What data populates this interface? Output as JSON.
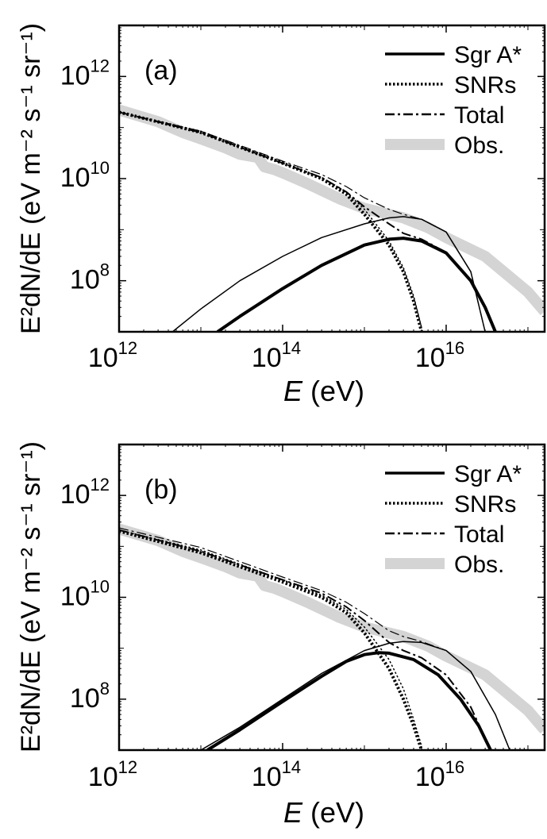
{
  "chart_data": [
    {
      "type": "line",
      "panel_label": "(a)",
      "xlabel": "E",
      "xlabel_unit": "(eV)",
      "ylabel": "E²dN/dE (eV m⁻² s⁻¹ sr⁻¹)",
      "x_scale": "log",
      "y_scale": "log",
      "xlim": [
        1000000000000.0,
        1.6e+17
      ],
      "ylim": [
        10000000.0,
        10000000000000.0
      ],
      "x_ticks": [
        1000000000000.0,
        100000000000000.0,
        1e+16
      ],
      "y_ticks": [
        100000000.0,
        10000000000.0,
        1000000000000.0
      ],
      "legend": {
        "placement": "top-right",
        "entries": [
          "Sgr A*",
          "SNRs",
          "Total",
          "Obs."
        ]
      },
      "series": [
        {
          "role": "obs",
          "x": [
            1000000000000.0,
            3000000000000.0,
            6000000000000.0,
            10000000000000.0,
            20000000000000.0,
            30000000000000.0,
            50000000000000.0,
            60000000000000.0,
            80000000000000.0,
            100000000000000.0,
            200000000000000.0,
            500000000000000.0,
            1000000000000000.0,
            3000000000000000.0,
            6000000000000000.0,
            1e+16,
            3e+16,
            1e+17,
            1.6e+17
          ],
          "y": [
            220000000000.0,
            130000000000.0,
            80000000000.0,
            60000000000.0,
            40000000000.0,
            30000000000.0,
            26000000000.0,
            17000000000.0,
            15000000000.0,
            13000000000.0,
            8000000000.0,
            4000000000.0,
            2600000000.0,
            1700000000.0,
            1100000000.0,
            700000000.0,
            300000000.0,
            60000000.0,
            25000000.0
          ]
        },
        {
          "role": "snr_thick",
          "x": [
            1000000000000.0,
            10000000000000.0,
            100000000000000.0,
            300000000000000.0,
            600000000000000.0,
            1000000000000000.0,
            2000000000000000.0,
            3000000000000000.0,
            4000000000000000.0,
            5000000000000000.0
          ],
          "y": [
            200000000000.0,
            80000000000.0,
            20000000000.0,
            10000000000.0,
            5000000000.0,
            2000000000.0,
            500000000.0,
            150000000.0,
            40000000.0,
            10000000.0
          ]
        },
        {
          "role": "snr_thin",
          "x": [
            1000000000000.0,
            10000000000000.0,
            100000000000000.0,
            300000000000000.0,
            600000000000000.0,
            1000000000000000.0,
            2000000000000000.0,
            3000000000000000.0,
            4000000000000000.0,
            5000000000000000.0
          ],
          "y": [
            200000000000.0,
            85000000000.0,
            21000000000.0,
            10500000000.0,
            5500000000.0,
            2500000000.0,
            600000000.0,
            180000000.0,
            50000000.0,
            12000000.0
          ]
        },
        {
          "role": "sgr_thick",
          "x": [
            16000000000000.0,
            30000000000000.0,
            100000000000000.0,
            300000000000000.0,
            1000000000000000.0,
            2000000000000000.0,
            3000000000000000.0,
            5000000000000000.0,
            1e+16,
            2e+16,
            3e+16,
            4e+16
          ],
          "y": [
            10000000.0,
            20000000.0,
            70000000.0,
            200000000.0,
            500000000.0,
            650000000.0,
            680000000.0,
            600000000.0,
            350000000.0,
            100000000.0,
            30000000.0,
            10000000.0
          ]
        },
        {
          "role": "sgr_thin",
          "x": [
            4500000000000.0,
            10000000000000.0,
            30000000000000.0,
            100000000000000.0,
            300000000000000.0,
            1000000000000000.0,
            2000000000000000.0,
            3000000000000000.0,
            5000000000000000.0,
            1e+16,
            2e+16,
            3e+16
          ],
          "y": [
            10000000.0,
            28000000.0,
            100000000.0,
            300000000.0,
            700000000.0,
            1300000000.0,
            1700000000.0,
            1800000000.0,
            1600000000.0,
            900000000.0,
            150000000.0,
            10000000.0
          ]
        },
        {
          "role": "total_thick",
          "x": [
            1000000000000.0,
            10000000000000.0,
            100000000000000.0,
            300000000000000.0,
            600000000000000.0,
            1000000000000000.0,
            2000000000000000.0,
            3000000000000000.0,
            5000000000000000.0,
            1e+16,
            2e+16,
            3e+16,
            4e+16
          ],
          "y": [
            200000000000.0,
            80000000000.0,
            20000000000.0,
            10500000000.0,
            5500000000.0,
            2800000000.0,
            1300000000.0,
            850000000.0,
            650000000.0,
            360000000.0,
            100000000.0,
            30000000.0,
            10000000.0
          ]
        },
        {
          "role": "total_thin",
          "x": [
            1000000000000.0,
            10000000000000.0,
            100000000000000.0,
            300000000000000.0,
            600000000000000.0,
            1000000000000000.0,
            2000000000000000.0,
            3000000000000000.0,
            5000000000000000.0,
            1e+16,
            2e+16,
            3e+16
          ],
          "y": [
            200000000000.0,
            85000000000.0,
            22000000000.0,
            12000000000.0,
            7000000000.0,
            4200000000.0,
            2500000000.0,
            2000000000.0,
            1600000000.0,
            900000000.0,
            150000000.0,
            10000000.0
          ]
        }
      ]
    },
    {
      "type": "line",
      "panel_label": "(b)",
      "xlabel": "E",
      "xlabel_unit": "(eV)",
      "ylabel": "E²dN/dE (eV m⁻² s⁻¹ sr⁻¹)",
      "x_scale": "log",
      "y_scale": "log",
      "xlim": [
        1000000000000.0,
        1.6e+17
      ],
      "ylim": [
        10000000.0,
        10000000000000.0
      ],
      "x_ticks": [
        1000000000000.0,
        100000000000000.0,
        1e+16
      ],
      "y_ticks": [
        100000000.0,
        10000000000.0,
        1000000000000.0
      ],
      "legend": {
        "placement": "top-right",
        "entries": [
          "Sgr A*",
          "SNRs",
          "Total",
          "Obs."
        ]
      },
      "series": [
        {
          "role": "obs",
          "x": [
            1000000000000.0,
            3000000000000.0,
            6000000000000.0,
            10000000000000.0,
            20000000000000.0,
            30000000000000.0,
            50000000000000.0,
            60000000000000.0,
            80000000000000.0,
            100000000000000.0,
            200000000000000.0,
            500000000000000.0,
            1000000000000000.0,
            3000000000000000.0,
            6000000000000000.0,
            1e+16,
            3e+16,
            1e+17,
            1.6e+17
          ],
          "y": [
            220000000000.0,
            130000000000.0,
            80000000000.0,
            60000000000.0,
            40000000000.0,
            30000000000.0,
            26000000000.0,
            17000000000.0,
            15000000000.0,
            13000000000.0,
            8000000000.0,
            4000000000.0,
            2600000000.0,
            1700000000.0,
            1100000000.0,
            700000000.0,
            300000000.0,
            60000000.0,
            25000000.0
          ]
        },
        {
          "role": "snr_thick",
          "x": [
            1000000000000.0,
            10000000000000.0,
            100000000000000.0,
            300000000000000.0,
            600000000000000.0,
            1000000000000000.0,
            2000000000000000.0,
            3000000000000000.0,
            4000000000000000.0,
            5000000000000000.0
          ],
          "y": [
            200000000000.0,
            75000000000.0,
            20000000000.0,
            10000000000.0,
            5000000000.0,
            2000000000.0,
            400000000.0,
            100000000.0,
            30000000.0,
            10000000.0
          ]
        },
        {
          "role": "snr_thin",
          "x": [
            1000000000000.0,
            10000000000000.0,
            100000000000000.0,
            300000000000000.0,
            600000000000000.0,
            1000000000000000.0,
            2000000000000000.0,
            3000000000000000.0,
            4000000000000000.0,
            5000000000000000.0
          ],
          "y": [
            210000000000.0,
            85000000000.0,
            22000000000.0,
            11000000000.0,
            5800000000.0,
            2600000000.0,
            600000000.0,
            160000000.0,
            40000000.0,
            12000000.0
          ]
        },
        {
          "role": "sgr_thick",
          "x": [
            12000000000000.0,
            30000000000000.0,
            100000000000000.0,
            300000000000000.0,
            600000000000000.0,
            1000000000000000.0,
            1500000000000000.0,
            2000000000000000.0,
            4000000000000000.0,
            8000000000000000.0,
            1.5e+16,
            2.5e+16,
            3.5e+16
          ],
          "y": [
            10000000.0,
            25000000.0,
            90000000.0,
            280000000.0,
            550000000.0,
            750000000.0,
            820000000.0,
            800000000.0,
            600000000.0,
            300000000.0,
            100000000.0,
            30000000.0,
            10000000.0
          ]
        },
        {
          "role": "sgr_thin",
          "x": [
            10000000000000.0,
            30000000000000.0,
            100000000000000.0,
            300000000000000.0,
            1000000000000000.0,
            2000000000000000.0,
            3000000000000000.0,
            5000000000000000.0,
            1e+16,
            2e+16,
            4e+16,
            6e+16
          ],
          "y": [
            10000000.0,
            28000000.0,
            100000000.0,
            320000000.0,
            900000000.0,
            1250000000.0,
            1350000000.0,
            1300000000.0,
            900000000.0,
            350000000.0,
            50000000.0,
            10000000.0
          ]
        },
        {
          "role": "total_thick",
          "x": [
            1000000000000.0,
            10000000000000.0,
            100000000000000.0,
            300000000000000.0,
            600000000000000.0,
            1000000000000000.0,
            2000000000000000.0,
            3000000000000000.0,
            5000000000000000.0,
            1e+16,
            2e+16,
            3.5e+16
          ],
          "y": [
            210000000000.0,
            80000000000.0,
            22000000000.0,
            12000000000.0,
            6500000000.0,
            3500000000.0,
            1300000000.0,
            900000000.0,
            650000000.0,
            300000000.0,
            70000000.0,
            10000000.0
          ]
        },
        {
          "role": "total_thin",
          "x": [
            1000000000000.0,
            10000000000000.0,
            100000000000000.0,
            300000000000000.0,
            600000000000000.0,
            1000000000000000.0,
            2000000000000000.0,
            3000000000000000.0,
            5000000000000000.0,
            1e+16,
            2e+16,
            4e+16,
            6e+16
          ],
          "y": [
            230000000000.0,
            95000000000.0,
            25000000000.0,
            13500000000.0,
            8000000000.0,
            4800000000.0,
            2200000000.0,
            1700000000.0,
            1350000000.0,
            900000000.0,
            350000000.0,
            50000000.0,
            10000000.0
          ]
        }
      ]
    }
  ]
}
